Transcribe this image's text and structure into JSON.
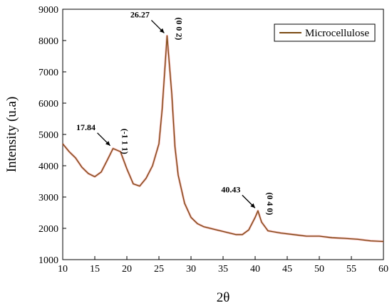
{
  "chart_data": {
    "type": "line",
    "title": "",
    "xlabel": "2θ",
    "ylabel": "Intensity (u.a)",
    "xlim": [
      10,
      60
    ],
    "ylim": [
      1000,
      9000
    ],
    "xticks": [
      10,
      15,
      20,
      25,
      30,
      35,
      40,
      45,
      50,
      55,
      60
    ],
    "yticks": [
      1000,
      2000,
      3000,
      4000,
      5000,
      6000,
      7000,
      8000,
      9000
    ],
    "grid": false,
    "legend_position": "top-right",
    "series": [
      {
        "name": "Microcellulose",
        "color": "#7a4a12",
        "x": [
          10,
          11,
          12,
          13,
          14,
          15,
          16,
          17,
          17.84,
          19,
          20,
          21,
          22,
          23,
          24,
          25,
          25.5,
          26.27,
          27,
          27.5,
          28,
          29,
          30,
          31,
          32,
          33,
          34,
          35,
          36,
          37,
          38,
          39,
          40,
          40.43,
          41,
          42,
          44,
          46,
          48,
          50,
          52,
          54,
          56,
          58,
          60
        ],
        "y": [
          4700,
          4450,
          4250,
          3950,
          3750,
          3650,
          3800,
          4200,
          4550,
          4450,
          3900,
          3420,
          3350,
          3600,
          4000,
          4700,
          5800,
          8150,
          6300,
          4600,
          3700,
          2800,
          2350,
          2150,
          2050,
          2000,
          1950,
          1900,
          1850,
          1800,
          1800,
          1950,
          2350,
          2560,
          2200,
          1920,
          1850,
          1800,
          1750,
          1750,
          1700,
          1680,
          1650,
          1600,
          1580
        ]
      }
    ],
    "annotations": [
      {
        "label": "17.84",
        "miller": "(-1 1 1)",
        "x": 17.84,
        "y": 4550
      },
      {
        "label": "26.27",
        "miller": "(0 0 2)",
        "x": 26.27,
        "y": 8150
      },
      {
        "label": "40.43",
        "miller": "(0 4 0)",
        "x": 40.43,
        "y": 2560
      }
    ]
  }
}
